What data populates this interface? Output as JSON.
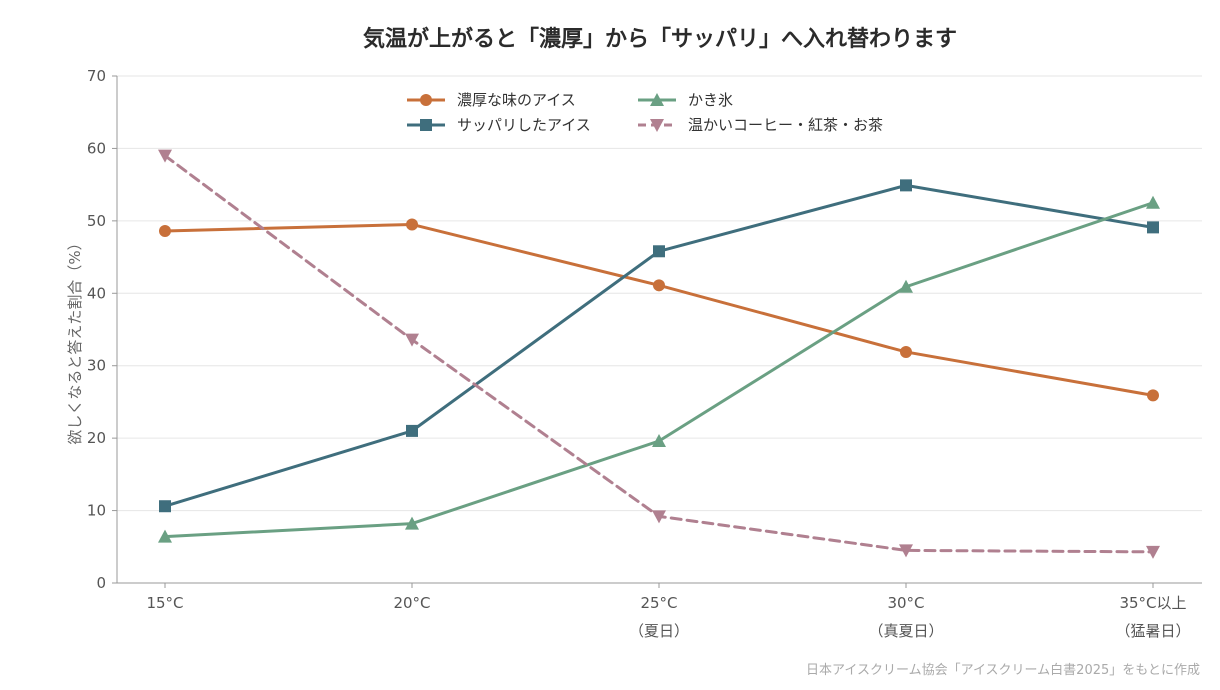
{
  "chart_data": {
    "type": "line",
    "title": "気温が上がると「濃厚」から「サッパリ」へ入れ替わります",
    "xlabel": "",
    "ylabel": "欲しくなると答えた割合（%）",
    "ylim": [
      0,
      70
    ],
    "yticks": [
      "0",
      "10",
      "20",
      "30",
      "40",
      "50",
      "60",
      "70"
    ],
    "categories": [
      {
        "label": "15°C",
        "sub": ""
      },
      {
        "label": "20°C",
        "sub": ""
      },
      {
        "label": "25°C",
        "sub": "（夏日）"
      },
      {
        "label": "30°C",
        "sub": "（真夏日）"
      },
      {
        "label": "35°C以上",
        "sub": "（猛暑日）"
      }
    ],
    "series": [
      {
        "name": "濃厚な味のアイス",
        "color": "#c8703a",
        "marker": "circle",
        "dash": false,
        "values": [
          48.6,
          49.5,
          41.1,
          31.9,
          25.9
        ]
      },
      {
        "name": "サッパリしたアイス",
        "color": "#3f6e7d",
        "marker": "square",
        "dash": false,
        "values": [
          10.6,
          21.0,
          45.8,
          54.9,
          49.1
        ]
      },
      {
        "name": "かき氷",
        "color": "#6aa083",
        "marker": "triangle-up",
        "dash": false,
        "values": [
          6.4,
          8.2,
          19.6,
          40.9,
          52.5
        ]
      },
      {
        "name": "温かいコーヒー・紅茶・お茶",
        "color": "#b08090",
        "marker": "triangle-down",
        "dash": true,
        "values": [
          59.0,
          33.6,
          9.2,
          4.5,
          4.3
        ]
      }
    ],
    "grid": "horizontal",
    "legend": "top-center",
    "source": "日本アイスクリーム協会「アイスクリーム白書2025」をもとに作成"
  }
}
